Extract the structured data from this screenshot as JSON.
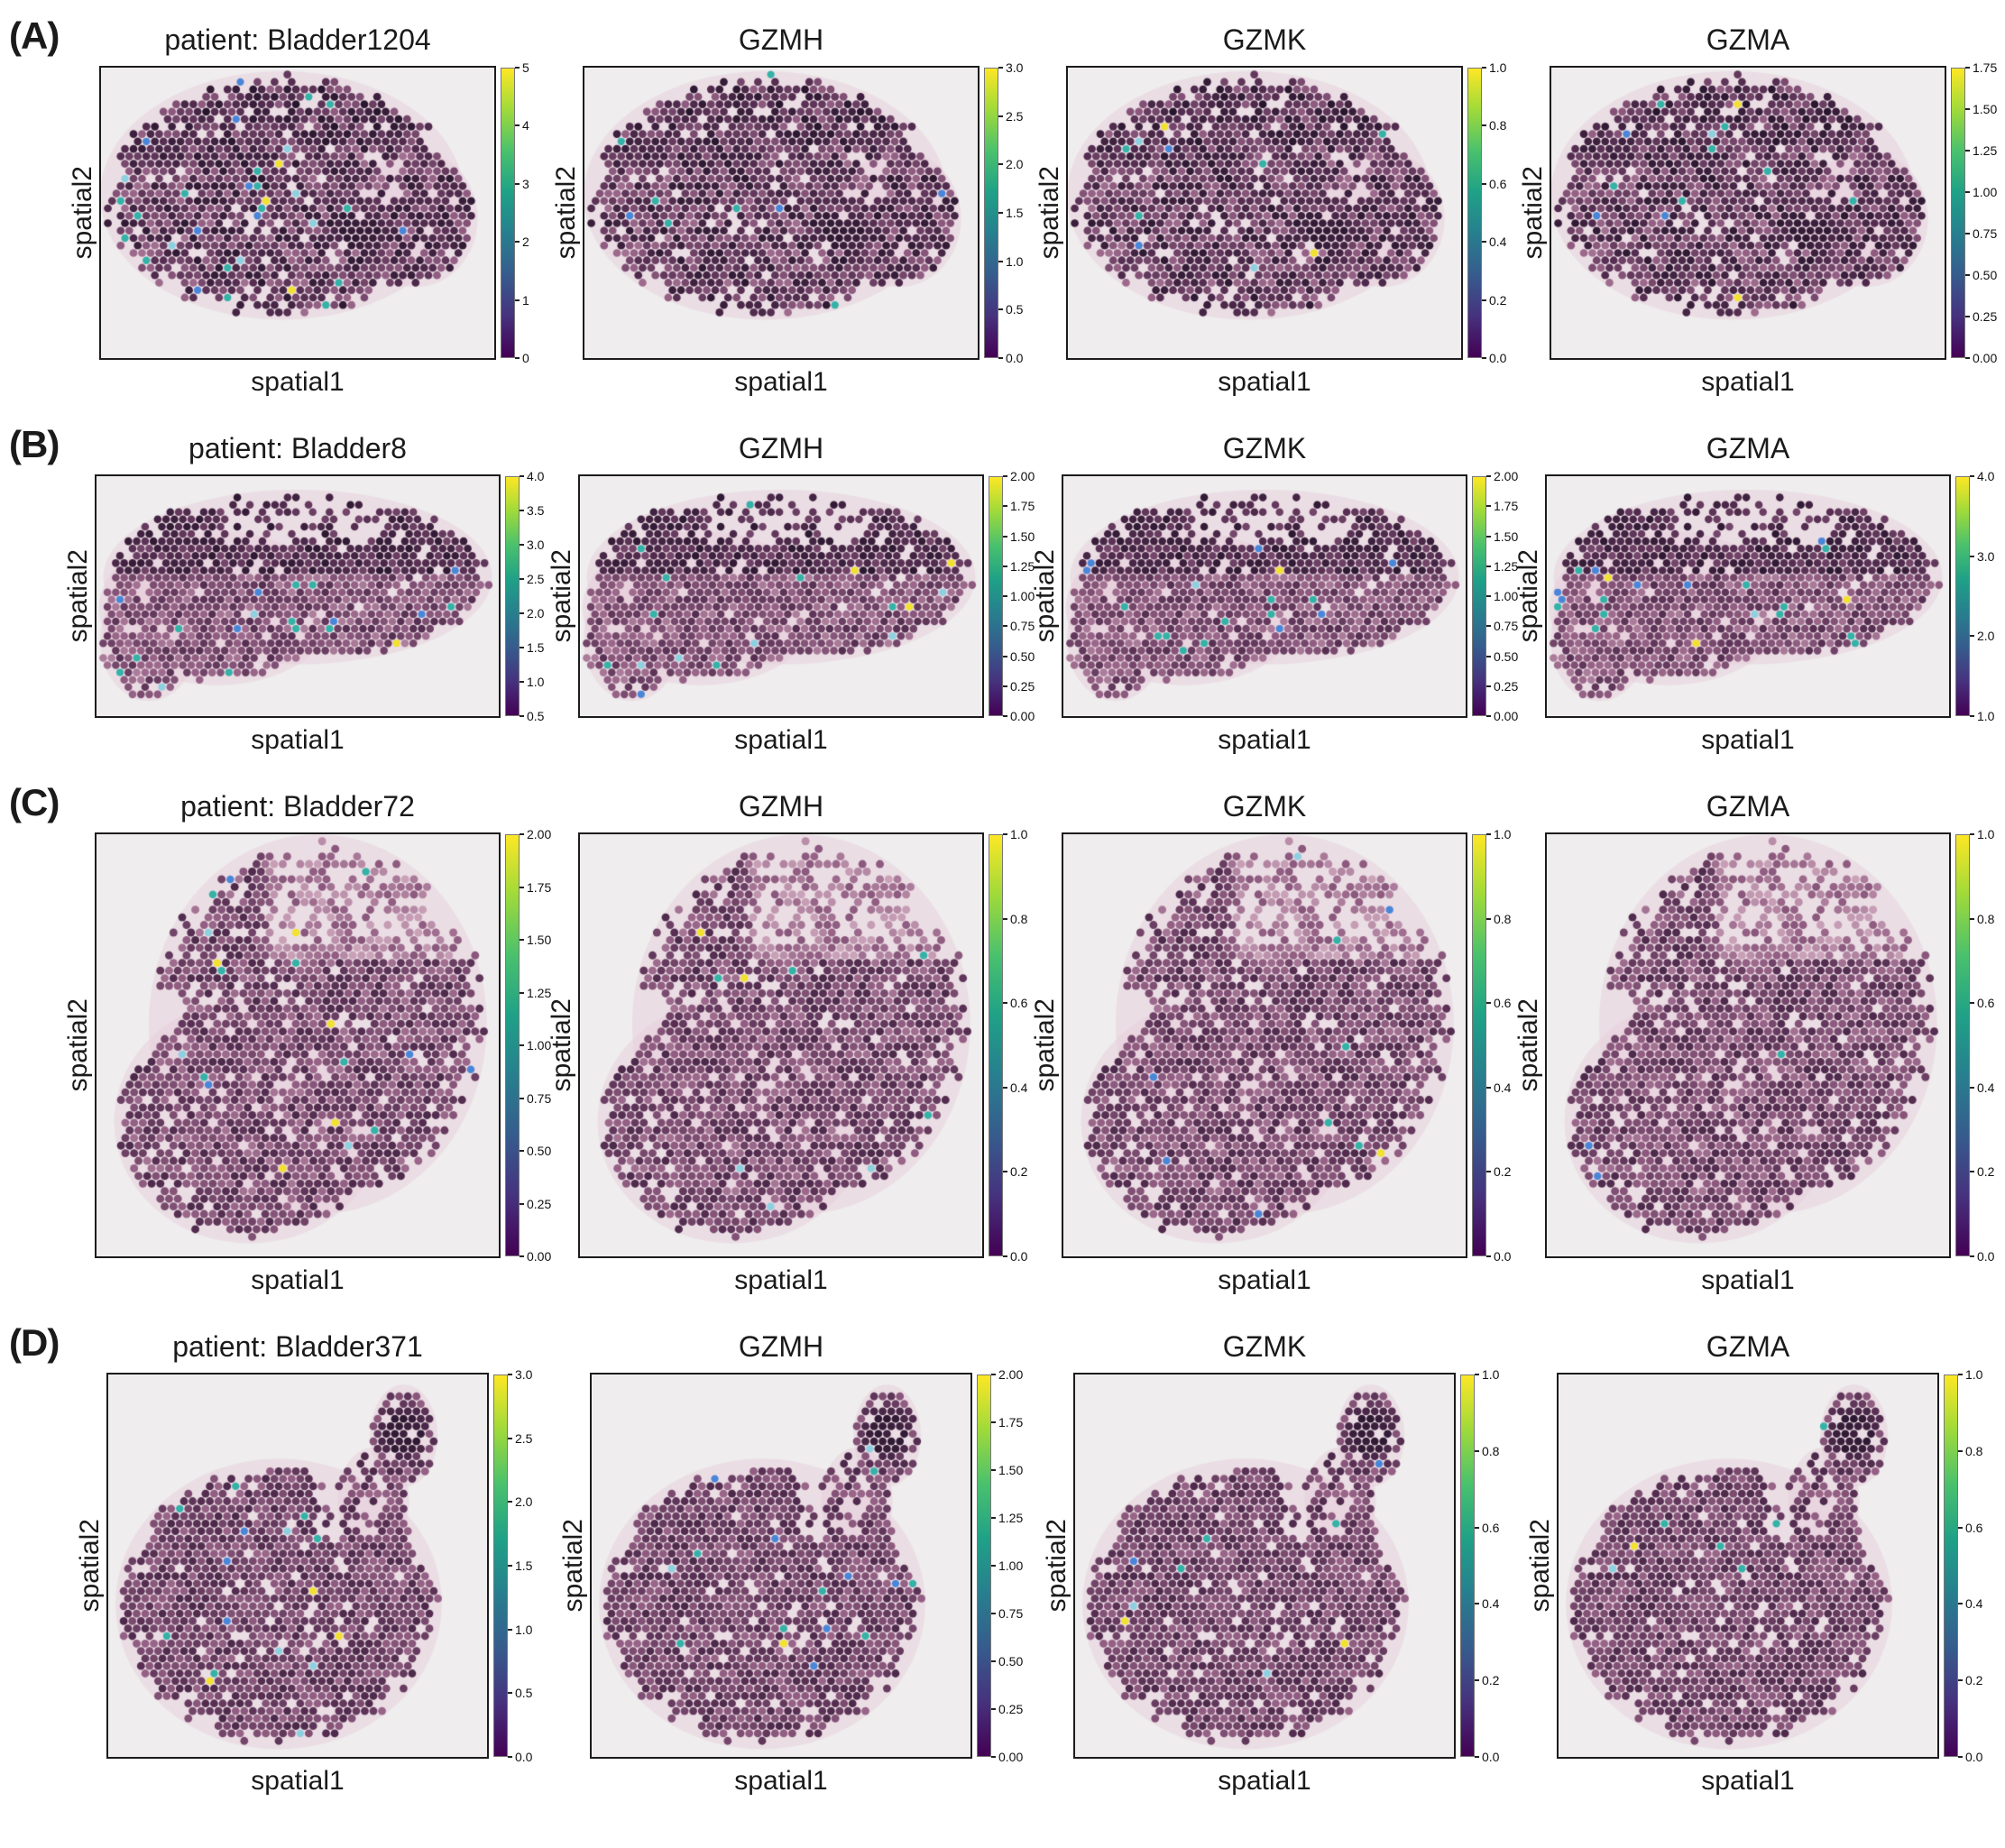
{
  "figure": {
    "colormap": {
      "name": "viridis",
      "stops": [
        "#440154",
        "#46327e",
        "#365c8d",
        "#277f8e",
        "#1fa187",
        "#4ac16d",
        "#9fda3a",
        "#fde725"
      ]
    },
    "palette": {
      "plot_bg": "#efedee",
      "tissue_wash": "#e7cdd9",
      "tissue_dark": "#26142c",
      "tissue_mid": "#562e52",
      "tissue_light": "#945f84",
      "tissue_pale": "#d8b4c6",
      "highlight_teal": "#35b2a8",
      "highlight_blue": "#4a86d8",
      "highlight_lightblue": "#8ed0e0",
      "highlight_yellow": "#f2e12f"
    },
    "rows": [
      {
        "label": "(A)",
        "panels": [
          {
            "title": "patient: Bladder1204",
            "xlabel": "spatial1",
            "ylabel": "spatial2",
            "colorbar_ticks": [
              "5",
              "4",
              "3",
              "2",
              "1",
              "0"
            ]
          },
          {
            "title": "GZMH",
            "xlabel": "spatial1",
            "ylabel": "spatial2",
            "colorbar_ticks": [
              "3.0",
              "2.5",
              "2.0",
              "1.5",
              "1.0",
              "0.5",
              "0.0"
            ]
          },
          {
            "title": "GZMK",
            "xlabel": "spatial1",
            "ylabel": "spatial2",
            "colorbar_ticks": [
              "1.0",
              "0.8",
              "0.6",
              "0.4",
              "0.2",
              "0.0"
            ]
          },
          {
            "title": "GZMA",
            "xlabel": "spatial1",
            "ylabel": "spatial2",
            "colorbar_ticks": [
              "1.75",
              "1.50",
              "1.25",
              "1.00",
              "0.75",
              "0.50",
              "0.25",
              "0.00"
            ]
          }
        ]
      },
      {
        "label": "(B)",
        "panels": [
          {
            "title": "patient: Bladder8",
            "xlabel": "spatial1",
            "ylabel": "spatial2",
            "colorbar_ticks": [
              "4.0",
              "3.5",
              "3.0",
              "2.5",
              "2.0",
              "1.5",
              "1.0",
              "0.5"
            ]
          },
          {
            "title": "GZMH",
            "xlabel": "spatial1",
            "ylabel": "spatial2",
            "colorbar_ticks": [
              "2.00",
              "1.75",
              "1.50",
              "1.25",
              "1.00",
              "0.75",
              "0.50",
              "0.25",
              "0.00"
            ]
          },
          {
            "title": "GZMK",
            "xlabel": "spatial1",
            "ylabel": "spatial2",
            "colorbar_ticks": [
              "2.00",
              "1.75",
              "1.50",
              "1.25",
              "1.00",
              "0.75",
              "0.50",
              "0.25",
              "0.00"
            ]
          },
          {
            "title": "GZMA",
            "xlabel": "spatial1",
            "ylabel": "spatial2",
            "colorbar_ticks": [
              "4.0",
              "3.0",
              "2.0",
              "1.0"
            ]
          }
        ]
      },
      {
        "label": "(C)",
        "panels": [
          {
            "title": "patient: Bladder72",
            "xlabel": "spatial1",
            "ylabel": "spatial2",
            "colorbar_ticks": [
              "2.00",
              "1.75",
              "1.50",
              "1.25",
              "1.00",
              "0.75",
              "0.50",
              "0.25",
              "0.00"
            ]
          },
          {
            "title": "GZMH",
            "xlabel": "spatial1",
            "ylabel": "spatial2",
            "colorbar_ticks": [
              "1.0",
              "0.8",
              "0.6",
              "0.4",
              "0.2",
              "0.0"
            ]
          },
          {
            "title": "GZMK",
            "xlabel": "spatial1",
            "ylabel": "spatial2",
            "colorbar_ticks": [
              "1.0",
              "0.8",
              "0.6",
              "0.4",
              "0.2",
              "0.0"
            ]
          },
          {
            "title": "GZMA",
            "xlabel": "spatial1",
            "ylabel": "spatial2",
            "colorbar_ticks": [
              "1.0",
              "0.8",
              "0.6",
              "0.4",
              "0.2",
              "0.0"
            ]
          }
        ]
      },
      {
        "label": "(D)",
        "panels": [
          {
            "title": "patient: Bladder371",
            "xlabel": "spatial1",
            "ylabel": "spatial2",
            "colorbar_ticks": [
              "3.0",
              "2.5",
              "2.0",
              "1.5",
              "1.0",
              "0.5",
              "0.0"
            ]
          },
          {
            "title": "GZMH",
            "xlabel": "spatial1",
            "ylabel": "spatial2",
            "colorbar_ticks": [
              "2.00",
              "1.75",
              "1.50",
              "1.25",
              "1.00",
              "0.75",
              "0.50",
              "0.25",
              "0.00"
            ]
          },
          {
            "title": "GZMK",
            "xlabel": "spatial1",
            "ylabel": "spatial2",
            "colorbar_ticks": [
              "1.0",
              "0.8",
              "0.6",
              "0.4",
              "0.2",
              "0.0"
            ]
          },
          {
            "title": "GZMA",
            "xlabel": "spatial1",
            "ylabel": "spatial2",
            "colorbar_ticks": [
              "1.0",
              "0.8",
              "0.6",
              "0.4",
              "0.2",
              "0.0"
            ]
          }
        ]
      }
    ]
  }
}
